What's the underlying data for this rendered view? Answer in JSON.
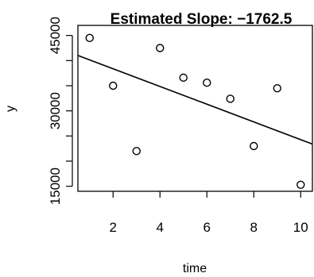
{
  "chart_data": {
    "type": "scatter",
    "title": "Estimated Slope: −1762.5",
    "xlabel": "time",
    "ylabel": "y",
    "xlim": [
      0.5,
      10.5
    ],
    "ylim": [
      14000,
      47000
    ],
    "x_ticks": [
      2,
      4,
      6,
      8,
      10
    ],
    "x_tick_labels": [
      "2",
      "4",
      "6",
      "8",
      "10"
    ],
    "y_ticks": [
      15000,
      30000,
      45000
    ],
    "y_tick_labels": [
      "15000",
      "30000",
      "45000"
    ],
    "y_minor_ticks": [
      20000,
      25000,
      35000,
      40000
    ],
    "grid": false,
    "points": [
      {
        "x": 1,
        "y": 44500
      },
      {
        "x": 2,
        "y": 35000
      },
      {
        "x": 3,
        "y": 22000
      },
      {
        "x": 4,
        "y": 42500
      },
      {
        "x": 5,
        "y": 36600
      },
      {
        "x": 6,
        "y": 35600
      },
      {
        "x": 7,
        "y": 32400
      },
      {
        "x": 8,
        "y": 23000
      },
      {
        "x": 9,
        "y": 34500
      },
      {
        "x": 10,
        "y": 15300
      }
    ],
    "fit_line": {
      "slope": -1762.5,
      "intercept": 41900
    }
  }
}
